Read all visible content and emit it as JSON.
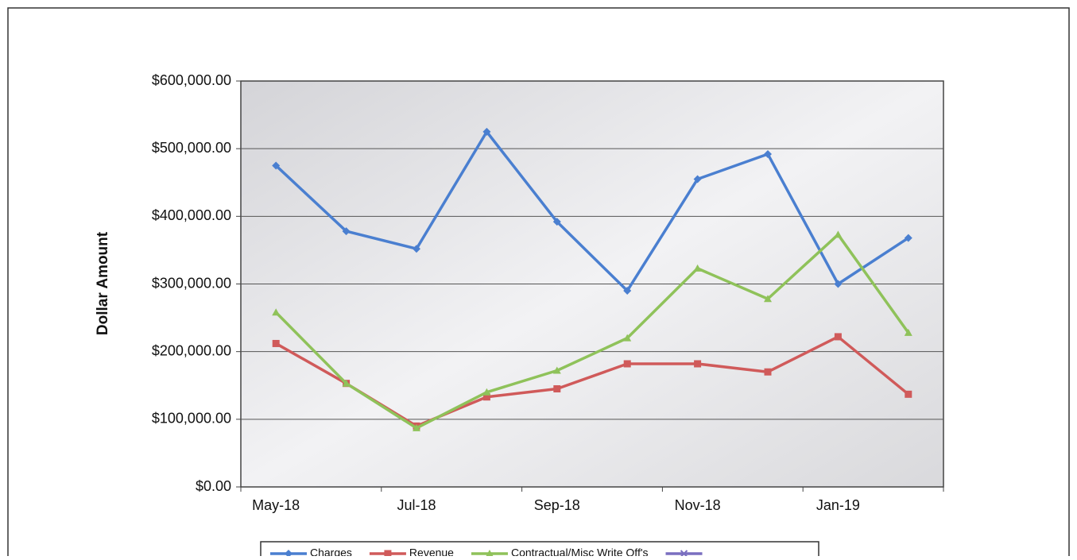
{
  "chart_data": {
    "type": "line",
    "y_label": "Dollar Amount",
    "categories": [
      "May-18",
      null,
      "Jul-18",
      null,
      "Sep-18",
      null,
      "Nov-18",
      null,
      "Jan-19",
      null
    ],
    "series": [
      {
        "name": "Charges",
        "color": "#4a7fd0",
        "marker": "diamond",
        "values": [
          475000,
          378000,
          352000,
          525000,
          392000,
          290000,
          455000,
          492000,
          300000,
          368000
        ]
      },
      {
        "name": "Revenue",
        "color": "#d05a5a",
        "marker": "square",
        "values": [
          212000,
          153000,
          90000,
          133000,
          145000,
          182000,
          182000,
          170000,
          222000,
          137000
        ]
      },
      {
        "name": "Contractual/Misc Write Off's",
        "color": "#8fc25a",
        "marker": "triangle",
        "values": [
          258000,
          153000,
          87000,
          140000,
          172000,
          220000,
          323000,
          278000,
          373000,
          228000
        ]
      },
      {
        "color": "#7a6fc0",
        "marker": "cross",
        "values": [
          null,
          null,
          null,
          null,
          null,
          null,
          null,
          null,
          null,
          null
        ]
      }
    ],
    "ylim": [
      0,
      600000
    ],
    "yticks": [
      {
        "value": 0,
        "label": "$0.00"
      },
      {
        "value": 100000,
        "label": "$100,000.00"
      },
      {
        "value": 200000,
        "label": "$200,000.00"
      },
      {
        "value": 300000,
        "label": "$300,000.00"
      },
      {
        "value": 400000,
        "label": "$400,000.00"
      },
      {
        "value": 500000,
        "label": "$500,000.00"
      },
      {
        "value": 600000,
        "label": "$600,000.00"
      }
    ],
    "grid": true,
    "legend": "bottom"
  }
}
